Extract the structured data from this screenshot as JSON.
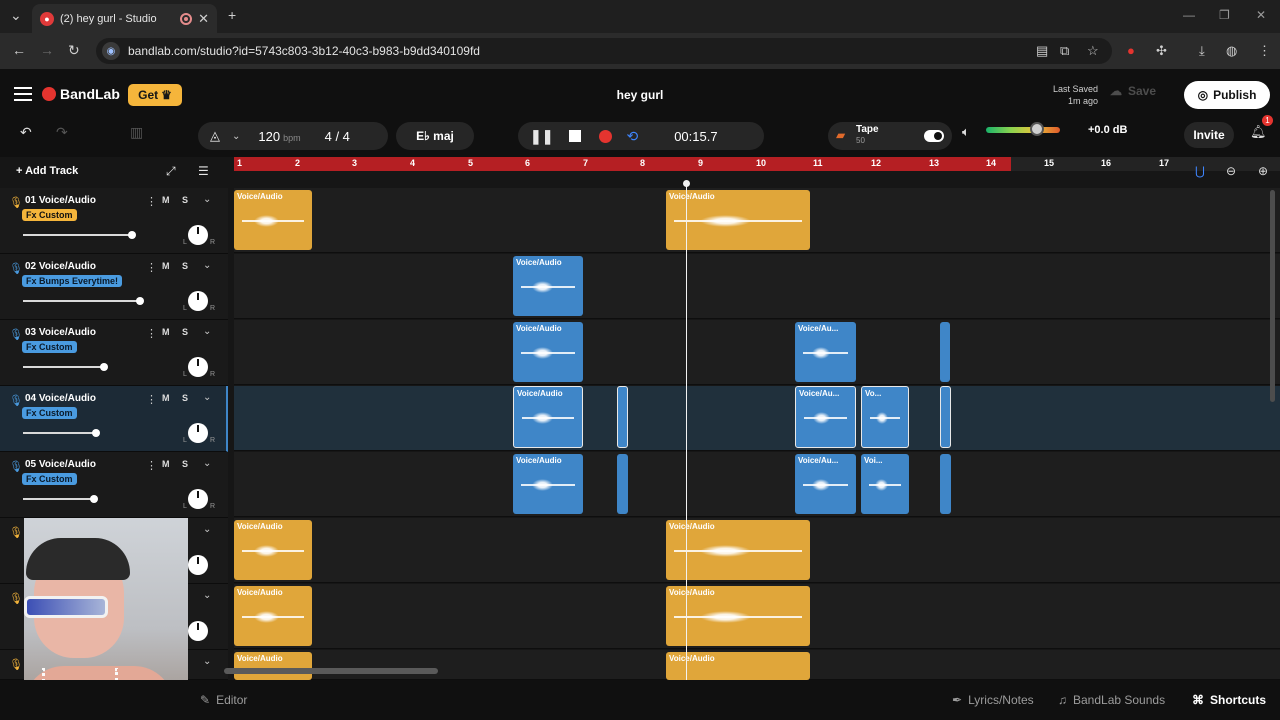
{
  "browser": {
    "tab_title": "(2) hey gurl - Studio",
    "url": "bandlab.com/studio?id=5743c803-3b12-40c3-b983-b9dd340109fd"
  },
  "app": {
    "logo_text": "BandLab",
    "get_label": "Get",
    "song_title": "hey gurl",
    "last_saved_label": "Last Saved",
    "last_saved_time": "1m ago",
    "save_label": "Save",
    "publish_label": "Publish",
    "invite_label": "Invite",
    "notification_count": "1"
  },
  "transport": {
    "bpm": "120",
    "bpm_unit": "bpm",
    "time_signature": "4 / 4",
    "key": "E♭ maj",
    "time": "00:15.7",
    "tape_label": "Tape",
    "tape_value": "50",
    "volume_db": "+0.0 dB",
    "volume_level": 0.62
  },
  "sidebar": {
    "add_track_label": "Add Track",
    "tracks": [
      {
        "name": "01  Voice/Audio",
        "fx": "Fx Custom",
        "fx_color": "#f5b53b",
        "volume": 0.85
      },
      {
        "name": "02  Voice/Audio",
        "fx": "Fx Bumps Everytime!",
        "fx_color": "#4a9be0",
        "volume": 0.9
      },
      {
        "name": "03  Voice/Audio",
        "fx": "Fx Custom",
        "fx_color": "#4a9be0",
        "volume": 0.62
      },
      {
        "name": "04  Voice/Audio",
        "fx": "Fx Custom",
        "fx_color": "#4a9be0",
        "volume": 0.56
      },
      {
        "name": "05  Voice/Audio",
        "fx": "Fx Custom",
        "fx_color": "#4a9be0",
        "volume": 0.55
      }
    ],
    "mute_label": "M",
    "solo_label": "S",
    "left_label": "L",
    "right_label": "R"
  },
  "timeline": {
    "bars": [
      "1",
      "2",
      "3",
      "4",
      "5",
      "6",
      "7",
      "8",
      "9",
      "10",
      "11",
      "12",
      "13",
      "14",
      "15",
      "16",
      "17"
    ],
    "clip_labels": {
      "full": "Voice/Audio",
      "short": "Voice/Au...",
      "tiny": "Vo...",
      "tiny2": "Voi..."
    }
  },
  "bottom": {
    "editor_label": "Editor",
    "lyrics_label": "Lyrics/Notes",
    "sounds_label": "BandLab Sounds",
    "shortcuts_label": "Shortcuts"
  },
  "colors": {
    "gold": "#e0a63a",
    "blue": "#3f86c8",
    "loop_red": "#b51f23",
    "record_red": "#e5342f"
  }
}
